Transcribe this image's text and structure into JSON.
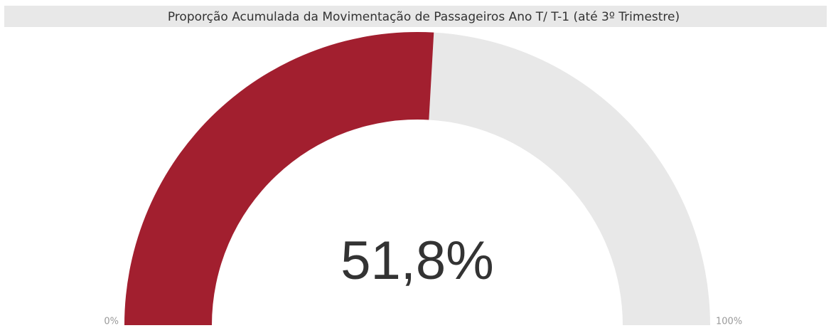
{
  "chart_data": {
    "type": "gauge",
    "title": "Proporção Acumulada da Movimentação de Passageiros Ano T/ T-1 (até 3º Trimestre)",
    "value": 51.8,
    "value_label": "51,8%",
    "xlim": [
      0,
      100
    ],
    "xticks": [
      {
        "value": 0,
        "label": "0%"
      },
      {
        "value": 100,
        "label": "100%"
      }
    ],
    "color": "#a21f2f",
    "track_color": "#e8e8e8"
  }
}
